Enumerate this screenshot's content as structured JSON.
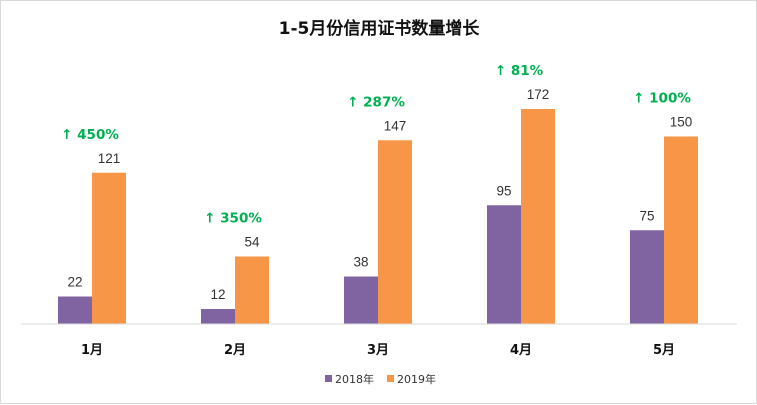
{
  "chart_data": {
    "type": "bar",
    "title": "1-5月份信用证书数量增长",
    "categories": [
      "1月",
      "2月",
      "3月",
      "4月",
      "5月"
    ],
    "series": [
      {
        "name": "2018年",
        "values": [
          22,
          12,
          38,
          95,
          75
        ],
        "color": "#8064a2"
      },
      {
        "name": "2019年",
        "values": [
          121,
          54,
          147,
          172,
          150
        ],
        "color": "#f79646"
      }
    ],
    "annotations": [
      "↑ 450%",
      "↑ 350%",
      "↑ 287%",
      "↑ 81%",
      "↑ 100%"
    ],
    "annotation_color": "#00b050",
    "ylim": [
      0,
      172
    ],
    "grid": false,
    "legend_position": "bottom"
  }
}
